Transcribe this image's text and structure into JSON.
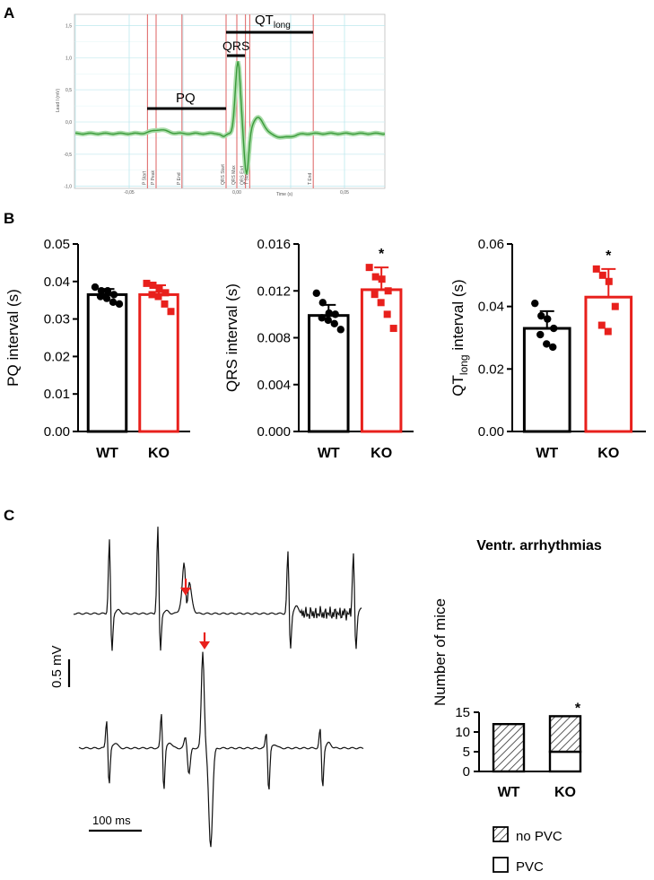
{
  "panels": {
    "a": "A",
    "b": "B",
    "c": "C"
  },
  "ecg_annotation": {
    "pq_label": "PQ",
    "qrs_label": "QRS",
    "qt_label_main": "QT",
    "qt_label_sub": "long",
    "ylabel": "Lead I (mV)",
    "xlabel": "Time (s)",
    "y_ticks": [
      "1,5",
      "1,0",
      "0,5",
      "0,0",
      "-0,5",
      "-1,0"
    ],
    "x_ticks": [
      "-0,05",
      "0,00",
      "0,05"
    ],
    "markers": [
      "P Start",
      "P Peak",
      "P End",
      "QRS Start",
      "QRS Max",
      "QRS End",
      "T Start",
      "T End"
    ],
    "trace_color": "#3a9a3a",
    "marker_color": "#e07070"
  },
  "colors": {
    "wt": "#000000",
    "ko": "#e8201c"
  },
  "chart_data": [
    {
      "type": "bar",
      "id": "pq",
      "ylabel_main": "PQ interval (s)",
      "ylabel_sub": "",
      "ylabel_rest": "",
      "categories": [
        "WT",
        "KO"
      ],
      "values": [
        0.0365,
        0.0365
      ],
      "errors": [
        0.0015,
        0.0025
      ],
      "ylim": [
        0,
        0.05
      ],
      "yticks": [
        "0.00",
        "0.01",
        "0.02",
        "0.03",
        "0.04",
        "0.05"
      ],
      "ytick_values": [
        0,
        0.01,
        0.02,
        0.03,
        0.04,
        0.05
      ],
      "points": [
        [
          0.0385,
          0.0375,
          0.0375,
          0.0365,
          0.036,
          0.0355,
          0.0345,
          0.034
        ],
        [
          0.0395,
          0.039,
          0.038,
          0.037,
          0.0365,
          0.036,
          0.034,
          0.032
        ]
      ],
      "significance": ""
    },
    {
      "type": "bar",
      "id": "qrs",
      "ylabel_main": "QRS interval (s)",
      "ylabel_sub": "",
      "ylabel_rest": "",
      "categories": [
        "WT",
        "KO"
      ],
      "values": [
        0.0099,
        0.0121
      ],
      "errors": [
        0.0009,
        0.0019
      ],
      "ylim": [
        0,
        0.016
      ],
      "yticks": [
        "0.000",
        "0.004",
        "0.008",
        "0.012",
        "0.016"
      ],
      "ytick_values": [
        0,
        0.004,
        0.008,
        0.012,
        0.016
      ],
      "points": [
        [
          0.0118,
          0.011,
          0.0101,
          0.01,
          0.0097,
          0.0095,
          0.0092,
          0.0087
        ],
        [
          0.014,
          0.0132,
          0.013,
          0.012,
          0.0117,
          0.011,
          0.01,
          0.0088
        ]
      ],
      "significance": "*"
    },
    {
      "type": "bar",
      "id": "qt",
      "ylabel_main": "QT",
      "ylabel_sub": "long",
      "ylabel_rest": " interval (s)",
      "categories": [
        "WT",
        "KO"
      ],
      "values": [
        0.033,
        0.043
      ],
      "errors": [
        0.0055,
        0.009
      ],
      "ylim": [
        0,
        0.06
      ],
      "yticks": [
        "0.00",
        "0.02",
        "0.04",
        "0.06"
      ],
      "ytick_values": [
        0,
        0.02,
        0.04,
        0.06
      ],
      "points": [
        [
          0.041,
          0.037,
          0.036,
          0.033,
          0.031,
          0.028,
          0.027
        ],
        [
          0.052,
          0.05,
          0.048,
          0.04,
          0.034,
          0.032
        ]
      ],
      "significance": "*"
    },
    {
      "type": "bar",
      "id": "arrhythmia",
      "stacked": true,
      "title": "Ventr. arrhythmias",
      "ylabel": "Number of mice",
      "categories": [
        "WT",
        "KO"
      ],
      "series": [
        {
          "name": "PVC",
          "values": [
            0,
            5
          ]
        },
        {
          "name": "no PVC",
          "values": [
            12,
            9
          ]
        }
      ],
      "ylim": [
        0,
        15
      ],
      "yticks": [
        "0",
        "5",
        "10",
        "15"
      ],
      "ytick_values": [
        0,
        5,
        10,
        15
      ],
      "significance": "*",
      "legend": [
        "no PVC",
        "PVC"
      ]
    }
  ],
  "traces": {
    "scale_voltage": "0.5 mV",
    "scale_time": "100 ms"
  }
}
